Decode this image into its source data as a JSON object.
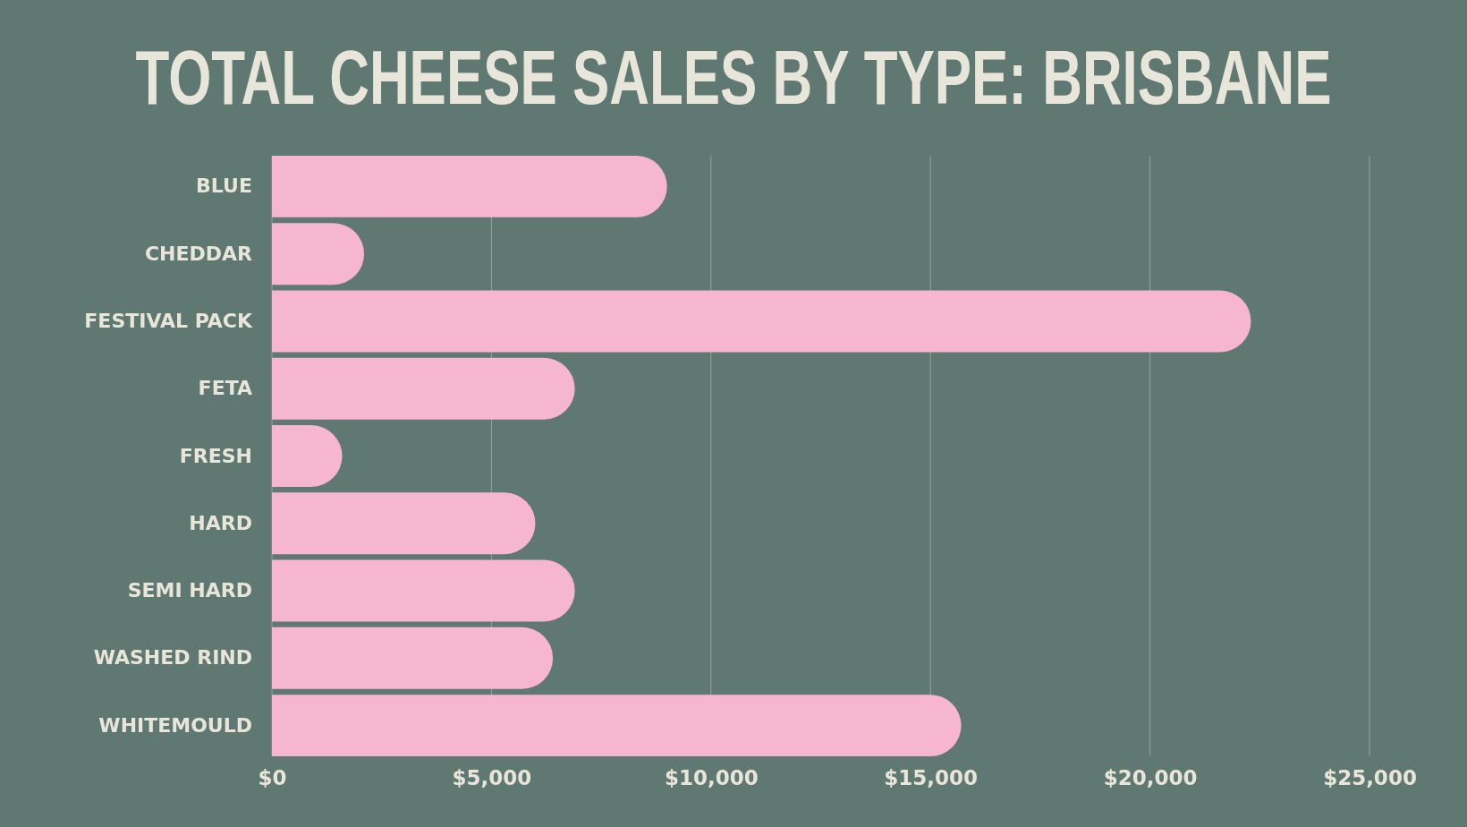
{
  "chart_data": {
    "type": "bar",
    "orientation": "horizontal",
    "title": "TOTAL CHEESE SALES BY TYPE: BRISBANE",
    "categories": [
      "BLUE",
      "CHEDDAR",
      "FESTIVAL PACK",
      "FETA",
      "FRESH",
      "HARD",
      "SEMI HARD",
      "WASHED RIND",
      "WHITEMOULD"
    ],
    "values": [
      9000,
      2100,
      22300,
      6900,
      1600,
      6000,
      6900,
      6400,
      15700
    ],
    "color": "#f6b6d0",
    "xlim": [
      0,
      25000
    ],
    "xticks": [
      {
        "value": 0,
        "label": "$0"
      },
      {
        "value": 5000,
        "label": "$5,000"
      },
      {
        "value": 10000,
        "label": "$10,000"
      },
      {
        "value": 15000,
        "label": "$15,000"
      },
      {
        "value": 20000,
        "label": "$20,000"
      },
      {
        "value": 25000,
        "label": "$25,000"
      }
    ],
    "grid": "x"
  }
}
